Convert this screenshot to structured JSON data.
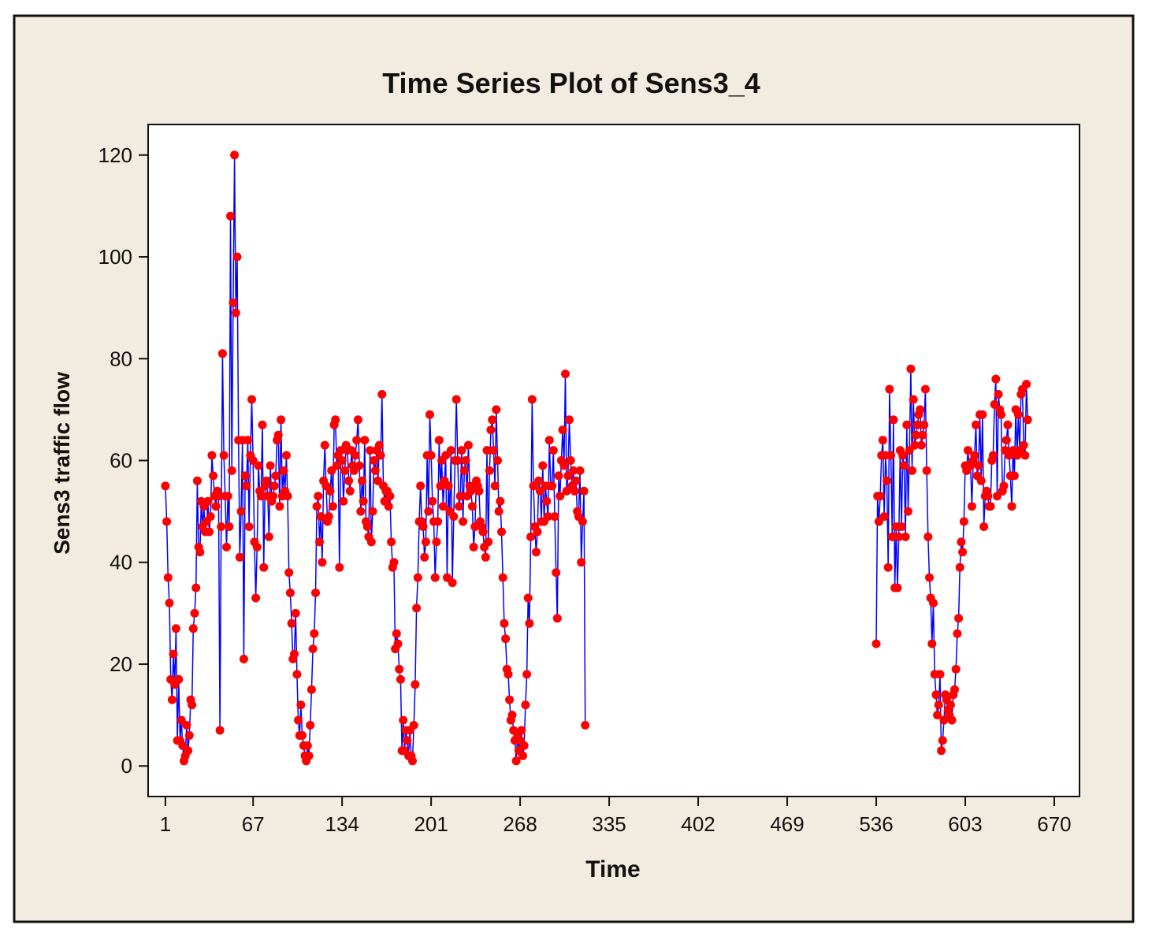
{
  "colors": {
    "outer_background": "#f2ece0",
    "outer_border": "#111111",
    "plot_background": "#ffffff",
    "line_color": "#0000ff",
    "marker_color": "#ff0000"
  },
  "chart_data": {
    "type": "line",
    "title": "Time Series Plot of Sens3_4",
    "xlabel": "Time",
    "ylabel": "Sens3 traffic flow",
    "xlim": [
      -12,
      689
    ],
    "ylim": [
      -6,
      126
    ],
    "x_ticks": [
      1,
      67,
      134,
      201,
      268,
      335,
      402,
      469,
      536,
      603,
      670
    ],
    "y_ticks": [
      0,
      20,
      40,
      60,
      80,
      100,
      120
    ],
    "grid": false,
    "legend": "none",
    "series": [
      {
        "name": "Sens3_4",
        "segments": [
          {
            "start_x": 1,
            "values": [
              55,
              48,
              37,
              32,
              17,
              13,
              22,
              16,
              27,
              5,
              17,
              5,
              9,
              4,
              1,
              2,
              8,
              3,
              6,
              13,
              12,
              27,
              30,
              35,
              56,
              43,
              42,
              52,
              47,
              51,
              46,
              48,
              52,
              46,
              49,
              61,
              57,
              53,
              51,
              54,
              53,
              7,
              47,
              81,
              61,
              53,
              43,
              53,
              47,
              108,
              58,
              91,
              120,
              89,
              100,
              64,
              41,
              50,
              64,
              21,
              57,
              55,
              64,
              47,
              61,
              72,
              60,
              44,
              33,
              43,
              59,
              54,
              53,
              67,
              39,
              55,
              56,
              53,
              45,
              59,
              52,
              53,
              55,
              57,
              64,
              65,
              51,
              68,
              53,
              58,
              54,
              61,
              53,
              38,
              34,
              28,
              21,
              22,
              30,
              18,
              9,
              6,
              12,
              6,
              4,
              2,
              1,
              4,
              2,
              8,
              15,
              23,
              26,
              34,
              51,
              53,
              44,
              49,
              40,
              56,
              63,
              55,
              48,
              49,
              54,
              58,
              51,
              67,
              68,
              59,
              61,
              39,
              62,
              60,
              52,
              58,
              63,
              62,
              56,
              54,
              62,
              59,
              58,
              61,
              64,
              68,
              59,
              50,
              56,
              52,
              64,
              48,
              47,
              45,
              62,
              44,
              50,
              60,
              58,
              62,
              56,
              63,
              61,
              73,
              55,
              52,
              54,
              54,
              51,
              53,
              44,
              39,
              40,
              23,
              26,
              24,
              19,
              17,
              3,
              9,
              3,
              7,
              5,
              2,
              7,
              2,
              1,
              8,
              16,
              31,
              37,
              48,
              55,
              48,
              47,
              41,
              44,
              61,
              50,
              69,
              61,
              52,
              48,
              37,
              44,
              48,
              64,
              55,
              60,
              51,
              56,
              61,
              37,
              55,
              50,
              62,
              36,
              49,
              60,
              72,
              60,
              51,
              53,
              62,
              48,
              58,
              60,
              53,
              63,
              55,
              54,
              51,
              43,
              47,
              56,
              55,
              54,
              48,
              47,
              46,
              43,
              41,
              62,
              44,
              58,
              66,
              68,
              62,
              55,
              70,
              60,
              50,
              52,
              46,
              37,
              28,
              25,
              19,
              18,
              13,
              9,
              10,
              7,
              5,
              1,
              6,
              3,
              5,
              7,
              2,
              4,
              12,
              18,
              33,
              28,
              45,
              72,
              55,
              47,
              42,
              46,
              56,
              54,
              48,
              59,
              48,
              55,
              52,
              49,
              64,
              55,
              55,
              62,
              49,
              38,
              29,
              57,
              53,
              60,
              66,
              59,
              77,
              54,
              57,
              68,
              60,
              55,
              58,
              54,
              56,
              50,
              49,
              58,
              40,
              48,
              54,
              8
            ]
          },
          {
            "start_x": 536,
            "values": [
              24,
              53,
              48,
              53,
              61,
              64,
              49,
              61,
              56,
              39,
              74,
              61,
              45,
              68,
              35,
              47,
              35,
              45,
              62,
              47,
              61,
              59,
              45,
              67,
              50,
              62,
              78,
              58,
              72,
              63,
              65,
              67,
              69,
              70,
              63,
              65,
              67,
              74,
              58,
              45,
              37,
              33,
              24,
              32,
              18,
              14,
              10,
              12,
              18,
              3,
              5,
              9,
              14,
              13,
              11,
              10,
              12,
              9,
              14,
              15,
              19,
              26,
              29,
              39,
              44,
              42,
              48,
              59,
              58,
              62,
              59,
              59,
              51,
              60,
              61,
              67,
              57,
              59,
              69,
              56,
              69,
              47,
              53,
              54,
              53,
              51,
              51,
              60,
              61,
              71,
              76,
              53,
              73,
              70,
              69,
              54,
              55,
              62,
              64,
              67,
              61,
              57,
              51,
              62,
              57,
              70,
              61,
              69,
              62,
              73,
              74,
              63,
              61,
              75,
              68
            ]
          }
        ]
      }
    ]
  }
}
